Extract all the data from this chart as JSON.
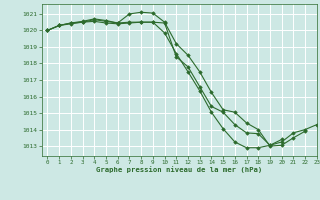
{
  "title": "Graphe pression niveau de la mer (hPa)",
  "background_color": "#cde8e4",
  "grid_color": "#ffffff",
  "line_color": "#2d6b2d",
  "xlim": [
    -0.5,
    23
  ],
  "ylim": [
    1012.4,
    1021.6
  ],
  "yticks": [
    1013,
    1014,
    1015,
    1016,
    1017,
    1018,
    1019,
    1020,
    1021
  ],
  "xticks": [
    0,
    1,
    2,
    3,
    4,
    5,
    6,
    7,
    8,
    9,
    10,
    11,
    12,
    13,
    14,
    15,
    16,
    17,
    18,
    19,
    20,
    21,
    22,
    23
  ],
  "line1_x": [
    0,
    1,
    2,
    3,
    4,
    5,
    6,
    7,
    8,
    9,
    10,
    11,
    12,
    13,
    14,
    15,
    16,
    17,
    18,
    19,
    20,
    21,
    22,
    23
  ],
  "line1_y": [
    1020.0,
    1020.3,
    1020.4,
    1020.5,
    1020.55,
    1020.45,
    1020.4,
    1020.45,
    1020.5,
    1020.5,
    1019.85,
    1018.6,
    1017.5,
    1016.35,
    1015.05,
    1014.05,
    1013.25,
    1012.9,
    1012.9,
    1013.05,
    1013.25,
    1013.8,
    1014.0,
    1014.3
  ],
  "line2_x": [
    0,
    1,
    2,
    3,
    4,
    5,
    6,
    7,
    8,
    9,
    10,
    11,
    12,
    13,
    14,
    15,
    16,
    17,
    18,
    19,
    20,
    21,
    22
  ],
  "line2_y": [
    1020.0,
    1020.3,
    1020.45,
    1020.55,
    1020.7,
    1020.6,
    1020.45,
    1021.0,
    1021.1,
    1021.05,
    1020.5,
    1019.2,
    1018.5,
    1017.5,
    1016.25,
    1015.2,
    1015.05,
    1014.4,
    1014.0,
    1013.0,
    1013.05,
    1013.5,
    1013.9
  ],
  "line3_x": [
    0,
    1,
    2,
    3,
    4,
    5,
    6,
    7,
    8,
    9,
    10,
    11,
    12,
    13,
    14,
    15,
    16,
    17,
    18,
    19,
    20
  ],
  "line3_y": [
    1020.0,
    1020.3,
    1020.45,
    1020.5,
    1020.65,
    1020.55,
    1020.45,
    1020.5,
    1020.5,
    1020.5,
    1020.45,
    1018.4,
    1017.8,
    1016.6,
    1015.4,
    1015.05,
    1014.3,
    1013.8,
    1013.75,
    1013.05,
    1013.4
  ]
}
